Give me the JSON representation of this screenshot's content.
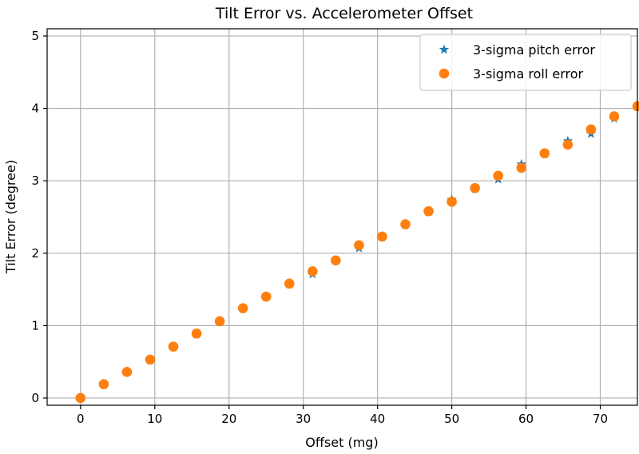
{
  "chart_data": {
    "type": "scatter",
    "title": "Tilt Error vs. Accelerometer Offset",
    "xlabel": "Offset (mg)",
    "ylabel": "Tilt Error (degree)",
    "xlim": [
      -4.5,
      75
    ],
    "ylim": [
      -0.1,
      5.1
    ],
    "xticks": [
      0,
      10,
      20,
      30,
      40,
      50,
      60,
      70
    ],
    "yticks": [
      0,
      1,
      2,
      3,
      4,
      5
    ],
    "grid": true,
    "legend_position": "top-right",
    "x": [
      0,
      3.125,
      6.25,
      9.375,
      12.5,
      15.625,
      18.75,
      21.875,
      25,
      28.125,
      31.25,
      34.375,
      37.5,
      40.625,
      43.75,
      46.875,
      50,
      53.125,
      56.25,
      59.375,
      62.5,
      65.625,
      68.75,
      71.875,
      75
    ],
    "series": [
      {
        "name": "3-sigma pitch error",
        "marker": "star",
        "color": "#1f77b4",
        "values": [
          0.0,
          0.18,
          0.36,
          0.53,
          0.71,
          0.88,
          1.06,
          1.24,
          1.4,
          1.57,
          1.71,
          1.9,
          2.07,
          2.22,
          2.39,
          2.57,
          2.74,
          2.89,
          3.02,
          3.23,
          3.37,
          3.55,
          3.65,
          3.86,
          4.03
        ]
      },
      {
        "name": "3-sigma roll error",
        "marker": "circle",
        "color": "#ff7f0e",
        "values": [
          0.0,
          0.19,
          0.36,
          0.53,
          0.71,
          0.89,
          1.06,
          1.24,
          1.4,
          1.58,
          1.75,
          1.9,
          2.11,
          2.23,
          2.4,
          2.58,
          2.71,
          2.9,
          3.07,
          3.18,
          3.38,
          3.5,
          3.71,
          3.89,
          4.03
        ]
      }
    ]
  }
}
